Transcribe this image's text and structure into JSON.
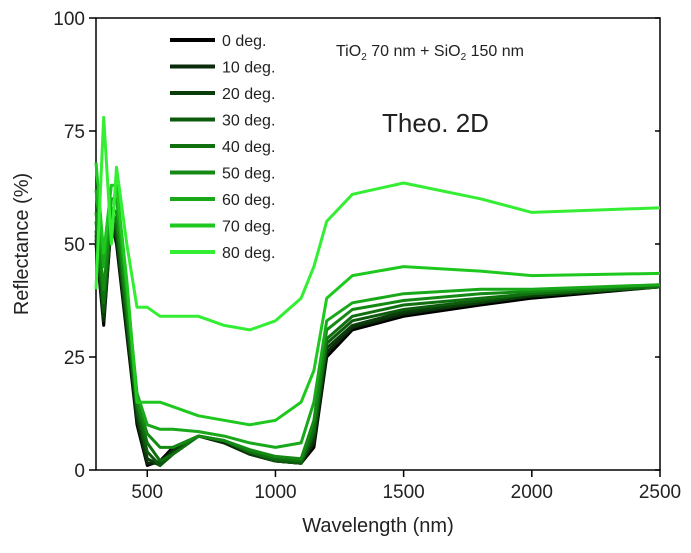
{
  "chart_data": {
    "type": "line",
    "annotation": [
      "TiO",
      "2",
      " 70 nm + SiO",
      "2",
      " 150 nm"
    ],
    "annotation2": "Theo. 2D",
    "xlabel": "Wavelength (nm)",
    "ylabel": "Reflectance (%)",
    "x": [
      300,
      330,
      360,
      380,
      420,
      460,
      500,
      550,
      600,
      700,
      800,
      900,
      1000,
      1100,
      1150,
      1200,
      1300,
      1500,
      1800,
      2000,
      2500
    ],
    "xlim": [
      300,
      2500
    ],
    "xticks": [
      500,
      1000,
      1500,
      2000,
      2500
    ],
    "ylim": [
      0,
      100
    ],
    "yticks": [
      0,
      25,
      50,
      75,
      100
    ],
    "legend": "upper left",
    "series": [
      {
        "name": "0 deg.",
        "color": "#000000",
        "values": [
          50,
          32,
          55,
          50,
          30,
          10,
          1,
          2,
          5,
          7.5,
          6,
          3.5,
          2,
          1.5,
          5,
          25,
          31,
          34,
          36.5,
          38,
          40.5
        ]
      },
      {
        "name": "10 deg.",
        "color": "#0a2a0a",
        "values": [
          51,
          33,
          55,
          51,
          31,
          11,
          1.5,
          1.5,
          4.5,
          7.5,
          6,
          3.5,
          2,
          1.5,
          6,
          26,
          31.5,
          34.5,
          37,
          38.5,
          40.5
        ]
      },
      {
        "name": "20 deg.",
        "color": "#0b3d0b",
        "values": [
          52,
          34,
          56,
          52,
          32,
          12,
          2.5,
          1,
          4,
          7.5,
          6.5,
          3.5,
          2,
          1.5,
          7,
          27,
          32,
          35,
          37,
          38.5,
          40.5
        ]
      },
      {
        "name": "30 deg.",
        "color": "#0d5a0d",
        "values": [
          53,
          35,
          56,
          53,
          33,
          13,
          4,
          1,
          3.5,
          7.5,
          6.5,
          4,
          2,
          1.5,
          8,
          28,
          33,
          35.5,
          37.5,
          39,
          40.5
        ]
      },
      {
        "name": "40 deg.",
        "color": "#107010",
        "values": [
          55,
          37,
          57,
          55,
          35,
          14,
          6,
          2,
          3.5,
          7.5,
          6.5,
          4,
          2.5,
          2,
          9,
          29,
          34,
          36.5,
          38,
          39,
          40.5
        ]
      },
      {
        "name": "50 deg.",
        "color": "#148a14",
        "values": [
          57,
          40,
          58,
          57,
          37,
          15,
          8,
          5,
          5,
          7.5,
          6.5,
          4.5,
          3,
          2.5,
          11,
          31,
          35.5,
          37.5,
          39,
          39.5,
          41
        ]
      },
      {
        "name": "60 deg.",
        "color": "#19a819",
        "values": [
          62,
          45,
          60,
          60,
          40,
          17,
          10,
          9,
          9,
          8.5,
          7.5,
          6,
          5,
          6,
          15,
          33,
          37,
          39,
          40,
          40,
          41
        ]
      },
      {
        "name": "70 deg.",
        "color": "#1ec81e",
        "values": [
          68,
          48,
          63,
          63,
          42,
          15,
          15,
          15,
          14,
          12,
          11,
          10,
          11,
          15,
          22,
          38,
          43,
          45,
          44,
          43,
          43.5
        ]
      },
      {
        "name": "80 deg.",
        "color": "#33ee33",
        "values": [
          40,
          78,
          50,
          67,
          50,
          36,
          36,
          34,
          34,
          34,
          32,
          31,
          33,
          38,
          45,
          55,
          61,
          63.5,
          60,
          57,
          58
        ]
      }
    ]
  }
}
